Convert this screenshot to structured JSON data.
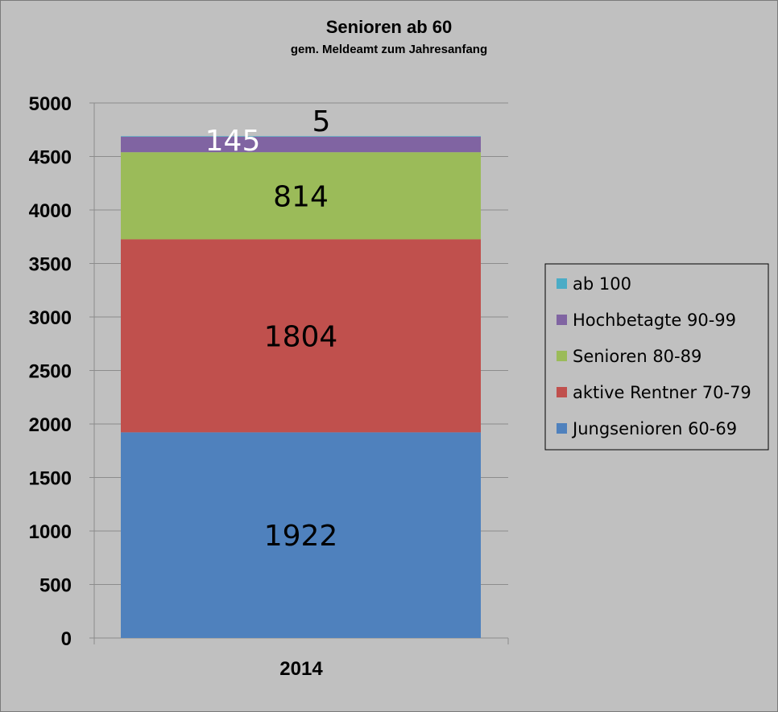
{
  "chart_data": {
    "type": "bar",
    "stacked": true,
    "title": "Senioren ab 60",
    "subtitle": "gem. Meldeamt zum Jahresanfang",
    "categories": [
      "2014"
    ],
    "ylim": [
      0,
      5000
    ],
    "yticks": [
      0,
      500,
      1000,
      1500,
      2000,
      2500,
      3000,
      3500,
      4000,
      4500,
      5000
    ],
    "grid": true,
    "legend_position": "right",
    "series": [
      {
        "name": "Jungsenioren 60-69",
        "values": [
          1922
        ],
        "color": "#4f81bd",
        "label_color": "#000000"
      },
      {
        "name": "aktive Rentner 70-79",
        "values": [
          1804
        ],
        "color": "#c0504d",
        "label_color": "#000000"
      },
      {
        "name": "Senioren 80-89",
        "values": [
          814
        ],
        "color": "#9bbb59",
        "label_color": "#000000"
      },
      {
        "name": "Hochbetagte 90-99",
        "values": [
          145
        ],
        "color": "#8064a2",
        "label_color": "#ffffff"
      },
      {
        "name": "ab 100",
        "values": [
          5
        ],
        "color": "#4bacc6",
        "label_color": "#000000"
      }
    ]
  }
}
